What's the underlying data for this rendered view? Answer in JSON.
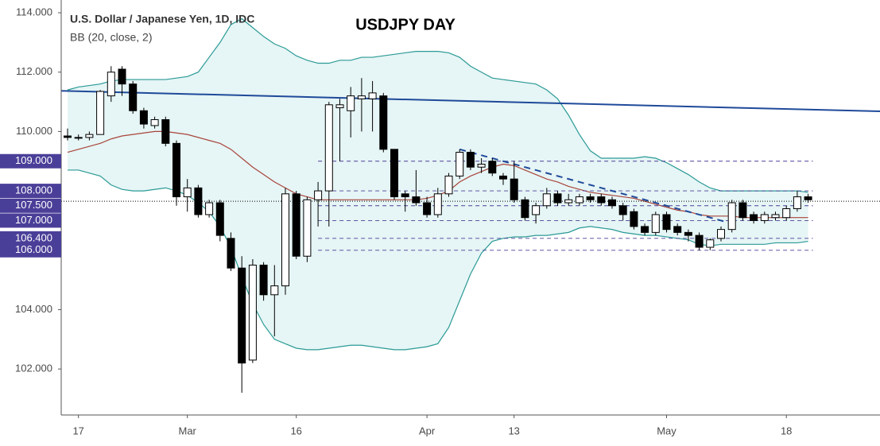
{
  "chart_data": {
    "type": "candlestick",
    "title": "USDJPY DAY",
    "subtitle": "U.S. Dollar / Japanese Yen, 1D, IDC",
    "indicator": "BB (20, close, 2)",
    "categories": [
      null,
      "17",
      null,
      null,
      null,
      null,
      null,
      null,
      null,
      null,
      null,
      "Mar",
      null,
      null,
      null,
      null,
      null,
      null,
      null,
      null,
      null,
      "16",
      null,
      null,
      null,
      null,
      null,
      null,
      null,
      null,
      null,
      null,
      null,
      "Apr",
      null,
      null,
      null,
      null,
      null,
      null,
      null,
      "13",
      null,
      null,
      null,
      null,
      null,
      null,
      null,
      null,
      null,
      null,
      null,
      null,
      null,
      "May",
      null,
      null,
      null,
      null,
      null,
      null,
      null,
      null,
      null,
      null,
      "18",
      null,
      null
    ],
    "open": [
      109.85,
      109.8,
      109.8,
      109.9,
      111.2,
      112.1,
      111.6,
      110.7,
      110.2,
      110.4,
      109.6,
      107.8,
      108.1,
      107.2,
      107.6,
      106.4,
      105.4,
      102.3,
      105.5,
      104.5,
      104.8,
      107.9,
      105.8,
      107.7,
      108.0,
      110.8,
      110.7,
      111.1,
      111.1,
      111.2,
      109.4,
      107.9,
      107.8,
      107.6,
      107.2,
      107.9,
      108.5,
      109.3,
      108.8,
      109.0,
      108.5,
      108.4,
      107.7,
      107.2,
      107.5,
      107.9,
      107.6,
      107.6,
      107.8,
      107.8,
      107.7,
      107.5,
      107.3,
      106.8,
      106.6,
      107.2,
      106.8,
      106.6,
      106.5,
      106.1,
      106.4,
      106.7,
      107.6,
      107.2,
      107.0,
      107.1,
      107.1,
      107.4,
      107.8
    ],
    "high": [
      110.1,
      109.9,
      110.0,
      111.4,
      112.2,
      112.2,
      111.7,
      110.8,
      110.5,
      110.5,
      109.7,
      108.4,
      108.2,
      107.7,
      107.7,
      106.6,
      105.8,
      105.7,
      105.6,
      105.5,
      108.1,
      108.0,
      107.8,
      108.3,
      111.0,
      111.1,
      111.5,
      111.8,
      111.7,
      111.3,
      109.4,
      108.0,
      108.7,
      107.8,
      108.1,
      108.6,
      109.4,
      109.4,
      109.1,
      109.1,
      108.6,
      109.0,
      107.8,
      107.6,
      108.1,
      108.0,
      107.9,
      107.9,
      107.9,
      107.9,
      107.8,
      107.6,
      107.4,
      106.9,
      107.3,
      107.3,
      106.9,
      106.7,
      106.6,
      106.4,
      106.8,
      107.7,
      107.7,
      107.3,
      107.3,
      107.3,
      107.5,
      108.0,
      107.9
    ],
    "low": [
      109.7,
      109.7,
      109.7,
      109.9,
      111.0,
      111.2,
      110.6,
      110.1,
      110.1,
      109.5,
      107.5,
      107.3,
      107.1,
      107.1,
      106.3,
      105.3,
      101.2,
      102.2,
      104.3,
      103.1,
      104.5,
      105.7,
      105.6,
      106.8,
      106.8,
      109.0,
      109.8,
      110.0,
      110.0,
      109.3,
      107.7,
      107.3,
      107.5,
      107.1,
      107.1,
      107.8,
      108.4,
      108.7,
      108.6,
      108.5,
      108.2,
      107.6,
      107.0,
      106.9,
      107.4,
      107.5,
      107.5,
      107.5,
      107.6,
      107.5,
      107.4,
      107.0,
      106.7,
      106.5,
      106.5,
      106.6,
      106.5,
      106.3,
      106.0,
      106.0,
      106.3,
      106.6,
      107.0,
      106.9,
      106.9,
      107.0,
      107.0,
      107.3,
      107.6
    ],
    "close": [
      109.8,
      109.8,
      109.9,
      111.35,
      112.0,
      111.6,
      110.7,
      110.25,
      110.4,
      109.6,
      107.8,
      108.1,
      107.2,
      107.6,
      106.5,
      105.4,
      102.2,
      105.5,
      104.5,
      104.8,
      107.9,
      105.8,
      107.7,
      108.0,
      110.9,
      110.9,
      111.2,
      111.2,
      111.3,
      109.4,
      107.8,
      107.8,
      107.6,
      107.2,
      107.9,
      108.5,
      109.3,
      108.8,
      108.9,
      108.6,
      108.4,
      107.7,
      107.1,
      107.5,
      107.9,
      107.6,
      107.7,
      107.8,
      107.7,
      107.6,
      107.5,
      107.2,
      106.8,
      106.6,
      107.2,
      106.7,
      106.6,
      106.5,
      106.1,
      106.35,
      106.7,
      107.6,
      107.1,
      107.0,
      107.2,
      107.2,
      107.4,
      107.8,
      107.7
    ],
    "up_color": "#ffffff",
    "down_color": "#000000",
    "bands": {
      "upper": [
        111.4,
        111.5,
        111.55,
        111.6,
        111.7,
        111.75,
        111.75,
        111.75,
        111.75,
        111.75,
        111.8,
        111.85,
        112.0,
        112.5,
        113.0,
        113.6,
        113.8,
        113.5,
        113.2,
        112.95,
        112.8,
        112.55,
        112.4,
        112.3,
        112.3,
        112.4,
        112.4,
        112.5,
        112.5,
        112.55,
        112.6,
        112.65,
        112.7,
        112.7,
        112.7,
        112.65,
        112.5,
        112.2,
        112.0,
        111.8,
        111.75,
        111.7,
        111.65,
        111.6,
        111.4,
        111.1,
        110.55,
        109.9,
        109.35,
        109.1,
        109.1,
        109.1,
        109.1,
        109.15,
        109.1,
        108.95,
        108.75,
        108.55,
        108.3,
        108.1,
        108.0,
        108.0,
        108.0,
        108.0,
        108.0,
        108.0,
        108.0,
        108.0,
        107.95
      ],
      "basis": [
        109.3,
        109.4,
        109.5,
        109.6,
        109.75,
        109.85,
        109.9,
        109.95,
        110.0,
        110.0,
        109.95,
        109.9,
        109.8,
        109.7,
        109.6,
        109.4,
        109.1,
        108.8,
        108.55,
        108.3,
        108.1,
        107.9,
        107.8,
        107.7,
        107.7,
        107.7,
        107.7,
        107.7,
        107.7,
        107.7,
        107.7,
        107.7,
        107.7,
        107.75,
        107.85,
        108.0,
        108.3,
        108.5,
        108.65,
        108.8,
        108.9,
        108.85,
        108.7,
        108.55,
        108.4,
        108.3,
        108.15,
        108.05,
        107.95,
        107.9,
        107.85,
        107.8,
        107.75,
        107.65,
        107.55,
        107.45,
        107.35,
        107.3,
        107.2,
        107.15,
        107.15,
        107.15,
        107.1,
        107.1,
        107.1,
        107.1,
        107.1,
        107.1,
        107.1
      ],
      "lower": [
        108.7,
        108.7,
        108.6,
        108.5,
        108.2,
        108.05,
        108.0,
        108.0,
        108.05,
        108.1,
        108.0,
        107.85,
        107.6,
        107.3,
        106.8,
        106.1,
        105.1,
        104.2,
        103.5,
        103.0,
        102.85,
        102.7,
        102.65,
        102.65,
        102.7,
        102.75,
        102.8,
        102.8,
        102.75,
        102.7,
        102.65,
        102.65,
        102.7,
        102.75,
        102.85,
        103.4,
        104.3,
        105.2,
        105.9,
        106.3,
        106.4,
        106.45,
        106.45,
        106.5,
        106.5,
        106.55,
        106.6,
        106.75,
        106.8,
        106.75,
        106.7,
        106.6,
        106.55,
        106.5,
        106.5,
        106.45,
        106.4,
        106.35,
        106.2,
        106.15,
        106.2,
        106.2,
        106.2,
        106.2,
        106.2,
        106.25,
        106.25,
        106.25,
        106.3
      ],
      "band_color": "#2a9a96",
      "basis_color": "#a8453c",
      "fill": "#e6f5f5"
    },
    "trendline": {
      "values": [
        111.37,
        110.68
      ],
      "color": "#1f4a9a"
    },
    "downtrend": {
      "values": [
        109.4,
        106.9
      ],
      "color": "#1f4a9a"
    },
    "price_line": 107.65,
    "levels": [
      {
        "value": 109,
        "label": "109.000"
      },
      {
        "value": 108,
        "label": "108.000"
      },
      {
        "value": 107.5,
        "label": "107.500"
      },
      {
        "value": 107,
        "label": "107.000"
      },
      {
        "value": 106.4,
        "label": "106.400"
      },
      {
        "value": 106,
        "label": "106.000"
      }
    ],
    "level_color": "#4a3f98",
    "ylim": [
      100.45,
      114.43
    ],
    "yticks": [
      {
        "value": 102,
        "label": "102.000"
      },
      {
        "value": 104,
        "label": "104.000"
      },
      {
        "value": 106,
        "label": "106.000"
      },
      {
        "value": 108,
        "label": "108.000"
      },
      {
        "value": 110,
        "label": "110.000"
      },
      {
        "value": 112,
        "label": "112.000"
      },
      {
        "value": 114,
        "label": "114.000"
      }
    ],
    "grid": false
  }
}
